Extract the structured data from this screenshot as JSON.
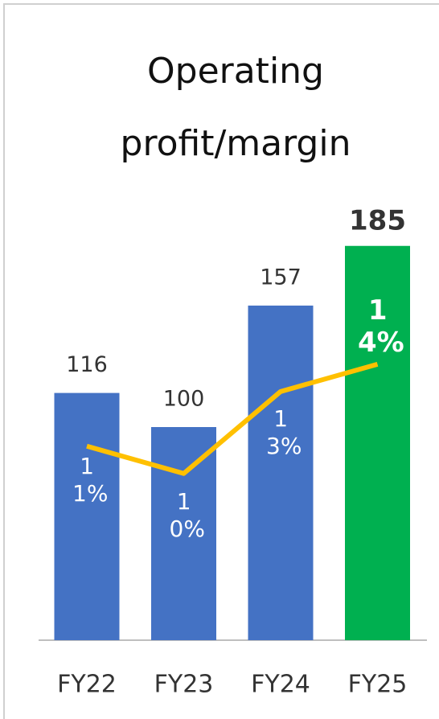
{
  "chart_data": {
    "type": "bar",
    "title": "Operating profit/margin",
    "categories": [
      "FY22",
      "FY23",
      "FY24",
      "FY25"
    ],
    "series": [
      {
        "name": "Operating profit",
        "colors": [
          "#4472c4",
          "#4472c4",
          "#4472c4",
          "#00b050"
        ],
        "values": [
          116,
          100,
          157,
          185
        ]
      },
      {
        "name": "Operating margin",
        "type": "line",
        "axis": "y2",
        "color": "#ffc000",
        "values": [
          11,
          10,
          13,
          14
        ],
        "value_labels": [
          "11%",
          "10%",
          "13%",
          "14%"
        ]
      }
    ],
    "ylim": [
      0,
      300
    ],
    "y2lim": [
      3.9,
      27.3
    ]
  }
}
